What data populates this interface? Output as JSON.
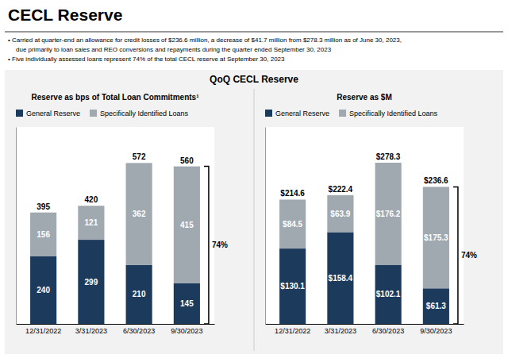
{
  "title": "CECL Reserve",
  "subtitle": "QoQ CECL Reserve",
  "annotations": [
    "•  Carried at quarter-end an allowance for credit losses of $236.6 million, a decrease of $41.7 million from $278.3 million as of June 30, 2023,",
    "due primarily to loan sales and REO conversions and repayments during the quarter ended September 30, 2023",
    "•  Five individually assessed loans represent 74% of the total CECL reserve at September 30, 2023"
  ],
  "chart_data": [
    {
      "type": "bar",
      "title": "Reserve as bps of Total Loan Commitments¹",
      "categories": [
        "12/31/2022",
        "3/31/2023",
        "6/30/2023",
        "9/30/2023"
      ],
      "series": [
        {
          "name": "General Reserve",
          "color": "#1b3a5c",
          "values": [
            240,
            299,
            210,
            145
          ]
        },
        {
          "name": "Specifically Identified Loans",
          "color": "#a0a8b0",
          "values": [
            156,
            121,
            362,
            415
          ]
        }
      ],
      "totals": [
        395,
        420,
        572,
        560
      ],
      "annotations": [
        "74%"
      ],
      "ylim": [
        0,
        700
      ],
      "stacked": true,
      "data_labels": true,
      "legend": "top",
      "tick_labels": "x",
      "grid": false
    },
    {
      "type": "bar",
      "title": "Reserve as $M",
      "categories": [
        "12/31/2022",
        "3/31/2023",
        "6/30/2023",
        "9/30/2023"
      ],
      "series": [
        {
          "name": "General Reserve",
          "color": "#1b3a5c",
          "values": [
            130.1,
            158.4,
            102.1,
            61.3
          ],
          "value_labels": [
            "$130.1",
            "$158.4",
            "$102.1",
            "$61.3"
          ]
        },
        {
          "name": "Specifically Identified Loans",
          "color": "#a0a8b0",
          "values": [
            84.5,
            63.9,
            176.2,
            175.3
          ],
          "value_labels": [
            "$84.5",
            "$63.9",
            "$176.2",
            "$175.3"
          ]
        }
      ],
      "totals": [
        214.6,
        222.4,
        278.3,
        236.6
      ],
      "total_labels": [
        "$214.6",
        "$222.4",
        "$278.3",
        "$236.6"
      ],
      "annotations": [
        "74%"
      ],
      "ylim": [
        0,
        340
      ],
      "stacked": true,
      "data_labels": true,
      "legend": "top",
      "tick_labels": "x",
      "grid": false
    }
  ]
}
